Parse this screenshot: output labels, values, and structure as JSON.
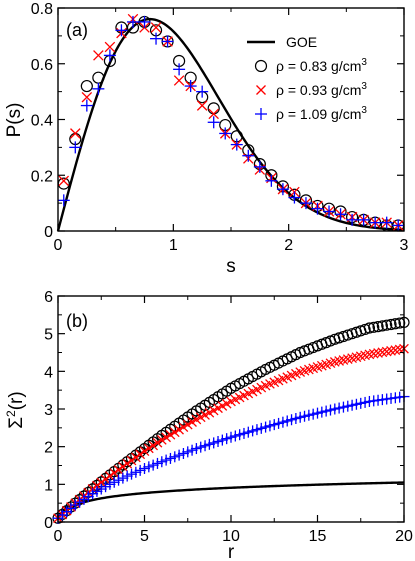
{
  "chart_data": [
    {
      "type": "scatter",
      "panel_label": "(a)",
      "xlabel": "s",
      "ylabel": "P(s)",
      "xlim": [
        0,
        3
      ],
      "ylim": [
        0,
        0.8
      ],
      "xticks": [
        0,
        1,
        2,
        3
      ],
      "xtick_labels": [
        "0",
        "1",
        "2",
        "3"
      ],
      "yticks": [
        0,
        0.2,
        0.4,
        0.6,
        0.8
      ],
      "ytick_labels": [
        "0",
        "0.2",
        "0.4",
        "0.6",
        "0.8"
      ],
      "grid": false,
      "legend": {
        "placement": "top-right",
        "entries": [
          {
            "label": "GOE",
            "style": "line",
            "color": "#000000"
          },
          {
            "label_main": "ρ = 0.83 g/cm",
            "label_sup": "3",
            "style": "circle",
            "color": "#000000"
          },
          {
            "label_main": "ρ = 0.93 g/cm",
            "label_sup": "3",
            "style": "x",
            "color": "#ff0000"
          },
          {
            "label_main": "ρ = 1.09 g/cm",
            "label_sup": "3",
            "style": "plus",
            "color": "#0000ff"
          }
        ]
      },
      "curve": {
        "name": "GOE",
        "color": "#000000",
        "formula": "wigner-surmise"
      },
      "series": [
        {
          "name": "ρ = 0.83 g/cm3",
          "marker": "circle",
          "color": "#000000",
          "x": [
            0.05,
            0.15,
            0.25,
            0.35,
            0.45,
            0.55,
            0.65,
            0.75,
            0.85,
            0.95,
            1.05,
            1.15,
            1.25,
            1.35,
            1.45,
            1.55,
            1.65,
            1.75,
            1.85,
            1.95,
            2.05,
            2.15,
            2.25,
            2.35,
            2.45,
            2.55,
            2.65,
            2.75,
            2.85,
            2.95
          ],
          "y": [
            0.17,
            0.33,
            0.52,
            0.55,
            0.61,
            0.73,
            0.73,
            0.75,
            0.72,
            0.68,
            0.61,
            0.55,
            0.48,
            0.44,
            0.38,
            0.34,
            0.29,
            0.24,
            0.2,
            0.16,
            0.13,
            0.11,
            0.09,
            0.08,
            0.07,
            0.05,
            0.04,
            0.03,
            0.02,
            0.02
          ]
        },
        {
          "name": "ρ = 0.93 g/cm3",
          "marker": "x",
          "color": "#ff0000",
          "x": [
            0.05,
            0.15,
            0.25,
            0.35,
            0.45,
            0.55,
            0.65,
            0.75,
            0.85,
            0.95,
            1.05,
            1.15,
            1.25,
            1.35,
            1.45,
            1.55,
            1.65,
            1.75,
            1.85,
            1.95,
            2.05,
            2.15,
            2.25,
            2.35,
            2.45,
            2.55,
            2.65,
            2.75,
            2.85,
            2.95
          ],
          "y": [
            0.18,
            0.35,
            0.48,
            0.63,
            0.66,
            0.71,
            0.76,
            0.73,
            0.73,
            0.68,
            0.54,
            0.52,
            0.45,
            0.42,
            0.35,
            0.31,
            0.26,
            0.22,
            0.19,
            0.15,
            0.14,
            0.1,
            0.09,
            0.07,
            0.06,
            0.05,
            0.04,
            0.03,
            0.03,
            0.02
          ]
        },
        {
          "name": "ρ = 1.09 g/cm3",
          "marker": "plus",
          "color": "#0000ff",
          "x": [
            0.05,
            0.15,
            0.25,
            0.35,
            0.45,
            0.55,
            0.65,
            0.75,
            0.85,
            0.95,
            1.05,
            1.15,
            1.25,
            1.35,
            1.45,
            1.55,
            1.65,
            1.75,
            1.85,
            1.95,
            2.05,
            2.15,
            2.25,
            2.35,
            2.45,
            2.55,
            2.65,
            2.75,
            2.85,
            2.95
          ],
          "y": [
            0.11,
            0.3,
            0.45,
            0.51,
            0.63,
            0.72,
            0.75,
            0.75,
            0.69,
            0.68,
            0.58,
            0.52,
            0.5,
            0.39,
            0.35,
            0.31,
            0.27,
            0.23,
            0.18,
            0.15,
            0.12,
            0.1,
            0.08,
            0.07,
            0.06,
            0.04,
            0.04,
            0.03,
            0.03,
            0.02
          ]
        }
      ]
    },
    {
      "type": "scatter",
      "panel_label": "(b)",
      "xlabel": "r",
      "ylabel_main": "Σ",
      "ylabel_sup": "2",
      "ylabel_tail": "(r)",
      "xlim": [
        0,
        20
      ],
      "ylim": [
        0,
        6
      ],
      "xticks": [
        0,
        5,
        10,
        15,
        20
      ],
      "xtick_labels": [
        "0",
        "5",
        "10",
        "15",
        "20"
      ],
      "yticks": [
        0,
        1,
        2,
        3,
        4,
        5,
        6
      ],
      "ytick_labels": [
        "0",
        "1",
        "2",
        "3",
        "4",
        "5",
        "6"
      ],
      "grid": false,
      "curve": {
        "name": "GOE",
        "color": "#000000",
        "formula": "goe-number-variance"
      },
      "series": [
        {
          "name": "ρ = 0.83 g/cm3",
          "marker": "circle",
          "color": "#000000",
          "r": [
            0,
            1,
            2,
            3,
            4,
            5,
            6,
            8,
            10,
            12,
            14,
            16,
            18,
            20
          ],
          "sigma2": [
            0.1,
            0.5,
            0.88,
            1.25,
            1.6,
            1.95,
            2.3,
            2.95,
            3.55,
            4.05,
            4.5,
            4.85,
            5.15,
            5.3
          ]
        },
        {
          "name": "ρ = 0.93 g/cm3",
          "marker": "x",
          "color": "#ff0000",
          "r": [
            0,
            1,
            2,
            3,
            4,
            5,
            6,
            8,
            10,
            12,
            14,
            16,
            18,
            20
          ],
          "sigma2": [
            0.1,
            0.5,
            0.88,
            1.22,
            1.55,
            1.88,
            2.18,
            2.72,
            3.2,
            3.62,
            3.98,
            4.25,
            4.45,
            4.6
          ]
        },
        {
          "name": "ρ = 1.09 g/cm3",
          "marker": "plus",
          "color": "#0000ff",
          "r": [
            0,
            1,
            2,
            3,
            4,
            5,
            6,
            8,
            10,
            12,
            14,
            16,
            18,
            20
          ],
          "sigma2": [
            0.1,
            0.45,
            0.75,
            1.0,
            1.22,
            1.42,
            1.6,
            1.95,
            2.25,
            2.52,
            2.78,
            3.0,
            3.2,
            3.33
          ]
        }
      ]
    }
  ]
}
